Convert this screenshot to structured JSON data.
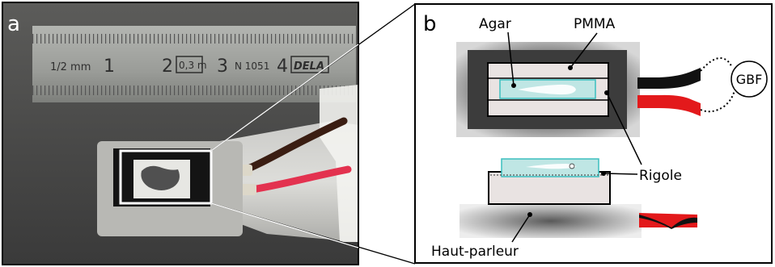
{
  "panels": {
    "a": {
      "letter": "a"
    },
    "b": {
      "letter": "b"
    }
  },
  "ruler": {
    "scale_text": "1/2 mm",
    "numbers": [
      "1",
      "2",
      "3",
      "4"
    ],
    "badge": "0,3 m",
    "model": "N 1051",
    "brand": "DELA"
  },
  "labels": {
    "agar": "Agar",
    "pmma": "PMMA",
    "gbf": "GBF",
    "rigole": "Rigole",
    "haut_parleur": "Haut-parleur"
  },
  "colors": {
    "photo_dark": "#4b4b4b",
    "metal_ruler": "#9a9c98",
    "channel_fill": "#bfe6e4",
    "channel_stroke": "#3bbfbf",
    "wire_black": "#111111",
    "wire_red": "#e3191b",
    "pmma_fill": "#e9e3e2"
  }
}
